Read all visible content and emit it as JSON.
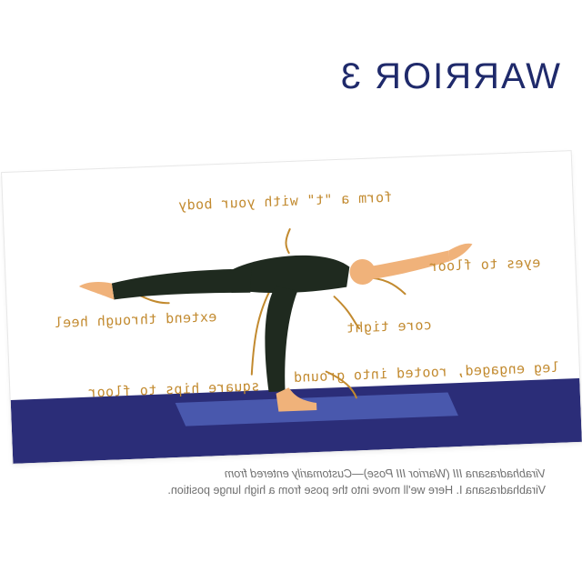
{
  "page": {
    "title": "WARRIOR 3",
    "caption": {
      "line1": "Virabhadrasana III (Warrior III Pose)—Customarily entered from",
      "line2": "Virabhadrasana I. Here we'll move into the pose from a high lunge position."
    }
  },
  "card": {
    "labels": {
      "t_shape": "form a \"t\" with your body",
      "eyes": "eyes to floor",
      "heel": "extend through heel",
      "core": "core tight",
      "leg": "leg engaged, rooted into ground",
      "hips": "square hips to floor"
    }
  },
  "colors": {
    "title": "#1f2a6b",
    "annotation": "#c28a2f",
    "floor": "#2b2d78",
    "mat": "#4b5bb0",
    "clothing": "#1f2a1f",
    "skin": "#f0b27a"
  }
}
